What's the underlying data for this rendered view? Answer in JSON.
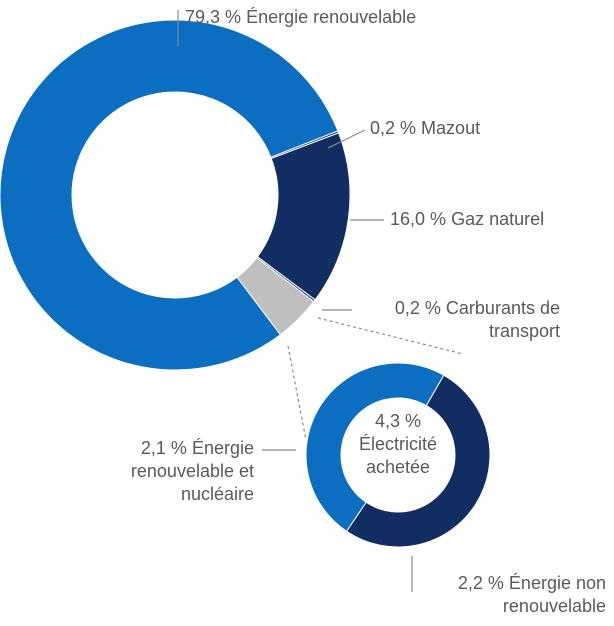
{
  "chart_data": [
    {
      "type": "pie",
      "categories": [
        "Énergie renouvelable",
        "Mazout",
        "Gaz naturel",
        "Carburants de transport",
        "Électricité achetée"
      ],
      "values": [
        79.3,
        0.2,
        16.0,
        0.2,
        4.3
      ],
      "value_labels": [
        "79,3 %",
        "0,2 %",
        "16,0 %",
        "0,2 %",
        "4,3 %"
      ],
      "colors": [
        "#0b6ec1",
        "#0e3f7a",
        "#122d62",
        "#0e3f7a",
        "#bfbfbf"
      ]
    },
    {
      "type": "pie",
      "categories": [
        "Énergie renouvelable et nucléaire",
        "Énergie non renouvelable"
      ],
      "values": [
        2.1,
        2.2
      ],
      "value_labels": [
        "2,1 %",
        "2,2 %"
      ],
      "colors": [
        "#0b6ec1",
        "#122d62"
      ]
    }
  ]
}
